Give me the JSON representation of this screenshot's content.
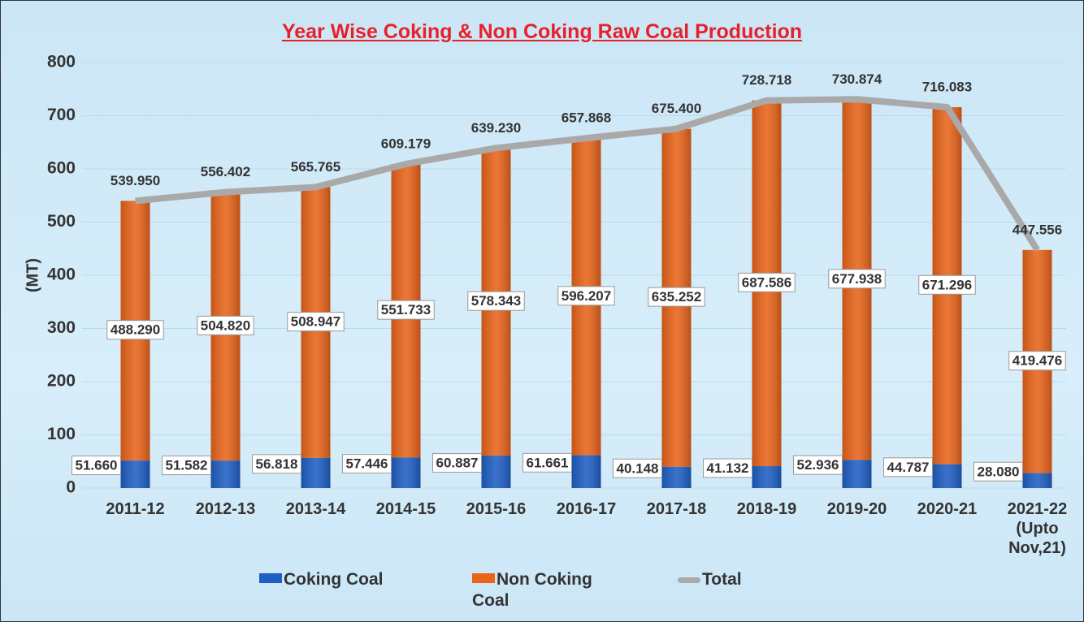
{
  "chart_data": {
    "type": "stacked-bar-line",
    "title": "Year Wise Coking & Non Coking Raw Coal Production",
    "y_label": "(MT)",
    "categories": [
      "2011-12",
      "2012-13",
      "2013-14",
      "2014-15",
      "2015-16",
      "2016-17",
      "2017-18",
      "2018-19",
      "2019-20",
      "2020-21",
      "2021-22 (Upto Nov,21)"
    ],
    "series": [
      {
        "name": "Coking Coal",
        "color": "#1f5fc4",
        "kind": "bar",
        "values": [
          51.66,
          51.582,
          56.818,
          57.446,
          60.887,
          61.661,
          40.148,
          41.132,
          52.936,
          44.787,
          28.08
        ],
        "value_labels": [
          "51.660",
          "51.582",
          "56.818",
          "57.446",
          "60.887",
          "61.661",
          "40.148",
          "41.132",
          "52.936",
          "44.787",
          "28.080"
        ]
      },
      {
        "name": "Non Coking Coal",
        "color": "#e8641b",
        "kind": "bar",
        "values": [
          488.29,
          504.82,
          508.947,
          551.733,
          578.343,
          596.207,
          635.252,
          687.586,
          677.938,
          671.296,
          419.476
        ],
        "value_labels": [
          "488.290",
          "504.820",
          "508.947",
          "551.733",
          "578.343",
          "596.207",
          "635.252",
          "687.586",
          "677.938",
          "671.296",
          "419.476"
        ]
      },
      {
        "name": "Total",
        "color": "#a9a9a9",
        "kind": "line",
        "values": [
          539.95,
          556.402,
          565.765,
          609.179,
          639.23,
          657.868,
          675.4,
          728.718,
          730.874,
          716.083,
          447.556
        ],
        "value_labels": [
          "539.950",
          "556.402",
          "565.765",
          "609.179",
          "639.230",
          "657.868",
          "675.400",
          "728.718",
          "730.874",
          "716.083",
          "447.556"
        ]
      }
    ],
    "ylim": [
      0,
      800
    ],
    "yticks": [
      0,
      100,
      200,
      300,
      400,
      500,
      600,
      700,
      800
    ],
    "grid": true
  }
}
